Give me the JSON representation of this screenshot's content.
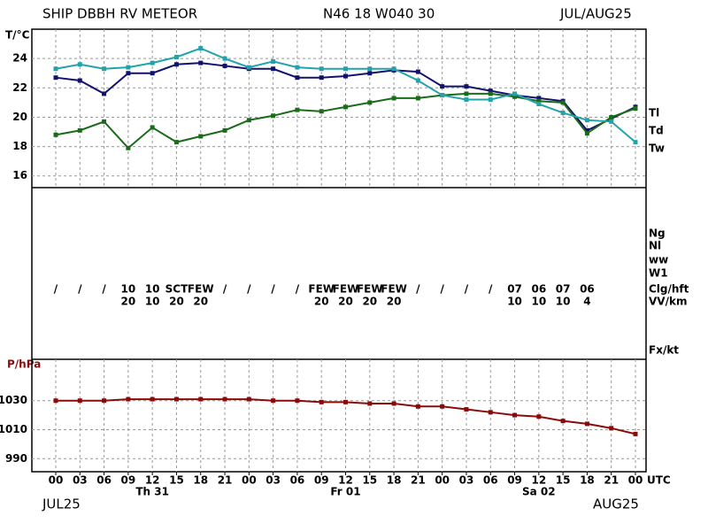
{
  "header": {
    "station": "SHIP DBBH RV METEOR",
    "position": "N46 18 W040 30",
    "period": "JUL/AUG25"
  },
  "footer": {
    "start": "JUL25",
    "end": "AUG25"
  },
  "chart_data": [
    {
      "type": "line",
      "ylabel": "T/°C",
      "ylim": [
        15.2,
        26
      ],
      "yticks": [
        16,
        18,
        20,
        22,
        24
      ],
      "grid": true,
      "series": [
        {
          "name": "Tl",
          "color": "#12126e",
          "values": [
            22.7,
            22.5,
            21.6,
            23.0,
            23.0,
            23.6,
            23.7,
            23.5,
            23.3,
            23.3,
            22.7,
            22.7,
            22.8,
            23.0,
            23.2,
            23.1,
            22.1,
            22.1,
            21.8,
            21.5,
            21.3,
            21.1,
            19.1,
            19.9,
            20.7
          ]
        },
        {
          "name": "Td",
          "color": "#1a6b1a",
          "values": [
            18.8,
            19.1,
            19.7,
            17.9,
            19.3,
            18.3,
            18.7,
            19.1,
            19.8,
            20.1,
            20.5,
            20.4,
            20.7,
            21.0,
            21.3,
            21.3,
            21.5,
            21.6,
            21.6,
            21.4,
            21.1,
            21.0,
            18.9,
            20.0,
            20.6
          ]
        },
        {
          "name": "Tw",
          "color": "#22a3ab",
          "values": [
            23.3,
            23.6,
            23.3,
            23.4,
            23.7,
            24.1,
            24.7,
            24.0,
            23.4,
            23.8,
            23.4,
            23.3,
            23.3,
            23.3,
            23.3,
            22.5,
            21.5,
            21.2,
            21.2,
            21.6,
            20.9,
            20.3,
            19.8,
            19.7,
            18.3
          ]
        }
      ]
    },
    {
      "type": "line",
      "ylabel": "P/hPa",
      "xlabel": "UTC",
      "categories": [
        "00",
        "03",
        "06",
        "09",
        "12",
        "15",
        "18",
        "21",
        "00",
        "03",
        "06",
        "09",
        "12",
        "15",
        "18",
        "21",
        "00",
        "03",
        "06",
        "09",
        "12",
        "15",
        "18",
        "21",
        "00"
      ],
      "days": [
        null,
        null,
        null,
        null,
        "Th 31",
        null,
        null,
        null,
        null,
        null,
        null,
        null,
        "Fr 01",
        null,
        null,
        null,
        null,
        null,
        null,
        null,
        "Sa 02",
        null,
        null,
        null,
        null
      ],
      "ylim": [
        981,
        1058.5
      ],
      "yticks": [
        990,
        1010,
        1030
      ],
      "grid": true,
      "series": [
        {
          "name": "P",
          "color": "#8b0a0a",
          "values": [
            1030,
            1030,
            1030,
            1031,
            1031,
            1031,
            1031,
            1031,
            1031,
            1030,
            1030,
            1029,
            1029,
            1028,
            1028,
            1026,
            1026,
            1024,
            1022,
            1020,
            1019,
            1016,
            1014,
            1011,
            1007
          ]
        }
      ]
    }
  ],
  "observations": {
    "row_labels": [
      "Ng",
      "Nl",
      "ww",
      "W1",
      "Clg/hft",
      "VV/km",
      "Fx/kt"
    ],
    "clg": [
      "/",
      "/",
      "/",
      "10",
      "10",
      "SCT",
      "FEW",
      "/",
      "/",
      "/",
      "/",
      "FEW",
      "FEW",
      "FEW",
      "FEW",
      "/",
      "/",
      "/",
      "/",
      "07",
      "06",
      "07",
      "06",
      null,
      null
    ],
    "vv": [
      null,
      null,
      null,
      "20",
      "10",
      "20",
      "20",
      null,
      null,
      null,
      null,
      "20",
      "20",
      "20",
      "20",
      null,
      null,
      null,
      null,
      "10",
      "10",
      "10",
      "4",
      null,
      null
    ]
  }
}
